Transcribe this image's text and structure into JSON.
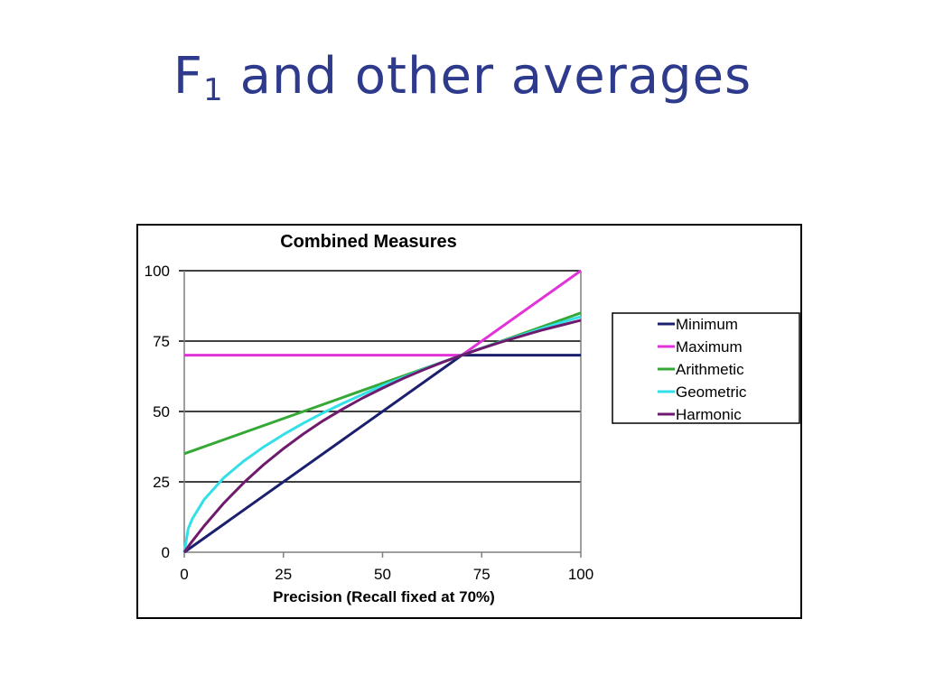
{
  "slide": {
    "title_main": "F",
    "title_subscript": "1",
    "title_rest": "and other averages"
  },
  "chart_data": {
    "type": "line",
    "title": "Combined Measures",
    "xlabel": "Precision (Recall fixed at 70%)",
    "ylabel": "",
    "xlim": [
      0,
      100
    ],
    "ylim": [
      0,
      100
    ],
    "x_ticks": [
      "0",
      "25",
      "50",
      "75",
      "100"
    ],
    "y_ticks": [
      "0",
      "25",
      "50",
      "75",
      "100"
    ],
    "grid": "horizontal",
    "legend_position": "right",
    "recall": 70,
    "series": [
      {
        "name": "Minimum",
        "color": "#1a1f6e",
        "x": [
          0,
          70,
          100
        ],
        "y": [
          0,
          70,
          70
        ]
      },
      {
        "name": "Maximum",
        "color": "#e233d8",
        "x": [
          0,
          70,
          100
        ],
        "y": [
          70,
          70,
          100
        ]
      },
      {
        "name": "Arithmetic",
        "color": "#35a835",
        "x": [
          0,
          100
        ],
        "y": [
          35,
          85
        ]
      },
      {
        "name": "Geometric",
        "color": "#33e0e8",
        "x": [
          0,
          1,
          2,
          5,
          10,
          15,
          20,
          25,
          30,
          35,
          40,
          45,
          50,
          55,
          60,
          65,
          70,
          75,
          80,
          85,
          90,
          95,
          100
        ],
        "y": [
          0,
          8.4,
          11.8,
          18.7,
          26.5,
          32.4,
          37.4,
          41.8,
          45.8,
          49.5,
          52.9,
          56.1,
          59.2,
          62.0,
          64.8,
          67.5,
          70.0,
          72.5,
          74.8,
          77.1,
          79.4,
          81.6,
          83.7
        ]
      },
      {
        "name": "Harmonic",
        "color": "#6e1b6e",
        "x": [
          0,
          1,
          2,
          5,
          10,
          15,
          20,
          25,
          30,
          35,
          40,
          45,
          50,
          55,
          60,
          65,
          70,
          75,
          80,
          85,
          90,
          95,
          100
        ],
        "y": [
          0,
          2.0,
          3.9,
          9.3,
          17.5,
          24.7,
          31.1,
          36.8,
          42.0,
          46.7,
          50.9,
          54.8,
          58.3,
          61.6,
          64.6,
          67.4,
          70.0,
          72.4,
          74.7,
          76.8,
          78.8,
          80.6,
          82.4
        ]
      }
    ]
  }
}
